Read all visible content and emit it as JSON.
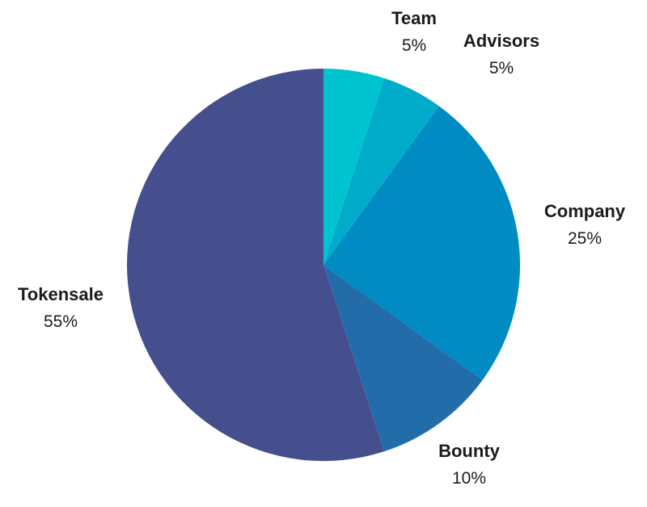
{
  "chart_data": {
    "type": "pie",
    "slices": [
      {
        "label": "Team",
        "value": 5,
        "value_label": "5%",
        "color": "#00c3d0"
      },
      {
        "label": "Advisors",
        "value": 5,
        "value_label": "5%",
        "color": "#00acca"
      },
      {
        "label": "Company",
        "value": 25,
        "value_label": "25%",
        "color": "#008bc2"
      },
      {
        "label": "Bounty",
        "value": 10,
        "value_label": "10%",
        "color": "#236caa"
      },
      {
        "label": "Tokensale",
        "value": 55,
        "value_label": "55%",
        "color": "#464f8d"
      }
    ],
    "start_angle": "12 o'clock",
    "direction": "clockwise",
    "legend": "none",
    "labels": "outside slices"
  }
}
